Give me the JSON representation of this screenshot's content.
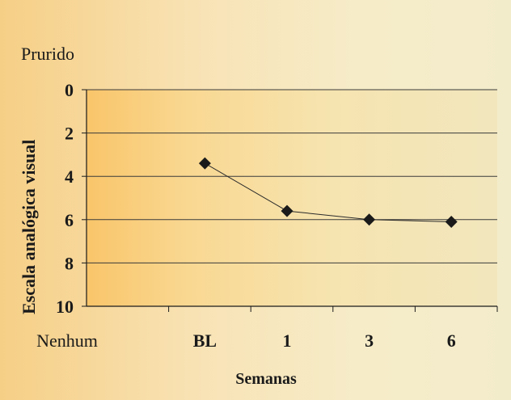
{
  "chart_data": {
    "type": "line",
    "title": "Prurido",
    "ylabel": "Escala analógica visual",
    "xlabel": "Semanas",
    "categories": [
      "Nenhum",
      "BL",
      "1",
      "3",
      "6"
    ],
    "ylim": [
      0,
      10
    ],
    "y_inverted": true,
    "yticks": [
      "0",
      "2",
      "4",
      "6",
      "8",
      "10"
    ],
    "grid": true,
    "series": [
      {
        "values": [
          null,
          3.4,
          5.6,
          6.0,
          6.1
        ],
        "marker": "diamond",
        "color": "#1a1a1a"
      }
    ]
  }
}
